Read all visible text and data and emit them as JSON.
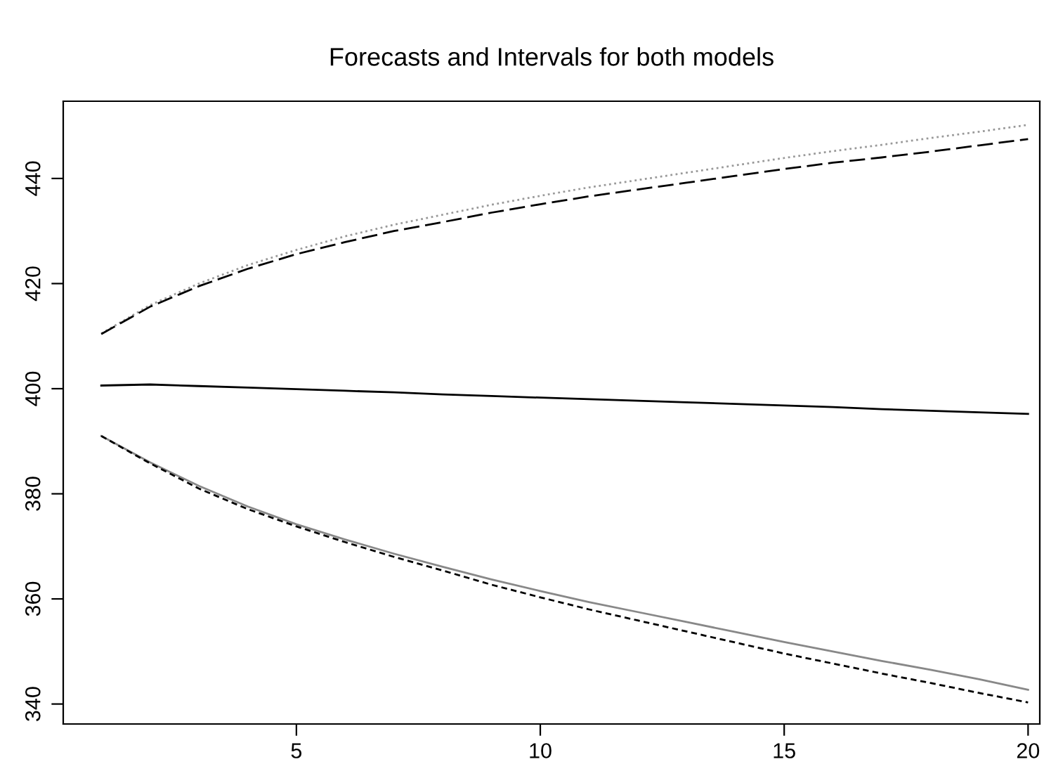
{
  "chart_data": {
    "type": "line",
    "title": "Forecasts and Intervals for both models",
    "x": [
      1,
      2,
      3,
      4,
      5,
      6,
      7,
      8,
      9,
      10,
      11,
      12,
      13,
      14,
      15,
      16,
      17,
      18,
      19,
      20
    ],
    "series": [
      {
        "color": "#999999",
        "line_style": "dotted",
        "values": [
          410.5,
          415.9,
          420.0,
          423.5,
          426.4,
          429.0,
          431.2,
          433.1,
          435.0,
          436.7,
          438.3,
          439.7,
          441.1,
          442.5,
          443.9,
          445.2,
          446.4,
          447.7,
          448.9,
          450.2
        ]
      },
      {
        "color": "#000000",
        "line_style": "dashed",
        "values": [
          410.4,
          415.6,
          419.5,
          422.8,
          425.6,
          427.9,
          430.0,
          431.7,
          433.5,
          435.1,
          436.6,
          437.9,
          439.2,
          440.5,
          441.8,
          443.0,
          444.0,
          445.1,
          446.3,
          447.5
        ]
      },
      {
        "color": "#000000",
        "line_style": "solid",
        "values": [
          400.6,
          400.8,
          400.5,
          400.2,
          399.9,
          399.6,
          399.3,
          398.9,
          398.6,
          398.3,
          398.0,
          397.7,
          397.4,
          397.1,
          396.8,
          396.5,
          396.1,
          395.8,
          395.5,
          395.2
        ]
      },
      {
        "color": "#888888",
        "line_style": "solid",
        "values": [
          391.0,
          386.0,
          381.5,
          377.6,
          374.2,
          371.3,
          368.6,
          366.1,
          363.7,
          361.5,
          359.4,
          357.5,
          355.6,
          353.7,
          351.8,
          350.0,
          348.2,
          346.5,
          344.7,
          342.7
        ]
      },
      {
        "color": "#000000",
        "line_style": "dashed",
        "values": [
          391.0,
          385.8,
          381.0,
          377.1,
          373.8,
          370.8,
          368.0,
          365.4,
          362.7,
          360.3,
          358.0,
          355.9,
          353.8,
          351.7,
          349.6,
          347.7,
          345.8,
          344.0,
          342.1,
          340.3
        ]
      }
    ],
    "xlim": [
      0.22,
      20.24
    ],
    "ylim": [
      336.2,
      454.7
    ],
    "xticks": [
      5,
      10,
      15,
      20
    ],
    "yticks": [
      340,
      360,
      380,
      400,
      420,
      440
    ],
    "grid": false,
    "legend": false,
    "marker": "none"
  }
}
